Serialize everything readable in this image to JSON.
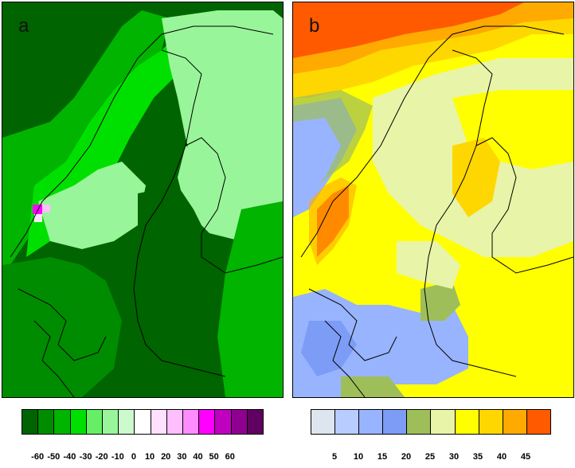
{
  "panels": [
    {
      "id": "a",
      "label": "a",
      "colormap": "green-purple diverging"
    },
    {
      "id": "b",
      "label": "b",
      "colormap": "blue-yellow-red sequential"
    }
  ],
  "legend_a": {
    "colors": [
      "#006400",
      "#008c00",
      "#00b400",
      "#00e000",
      "#66ee66",
      "#99f599",
      "#ccfacc",
      "#ffffff",
      "#ffe0ff",
      "#ffbfff",
      "#ff8cff",
      "#ff00ff",
      "#c000c0",
      "#900090",
      "#600060"
    ],
    "ticks": [
      "-60",
      "-50",
      "-40",
      "-30",
      "-20",
      "-10",
      "0",
      "10",
      "20",
      "30",
      "40",
      "50",
      "60"
    ]
  },
  "legend_b": {
    "colors": [
      "#dde6ee",
      "#b8ccff",
      "#98b4ff",
      "#7d9cf5",
      "#9ebe5a",
      "#e8f4a8",
      "#ffff00",
      "#ffd700",
      "#ffaa00",
      "#ff5a00"
    ],
    "ticks": [
      "5",
      "10",
      "15",
      "20",
      "25",
      "30",
      "35",
      "40",
      "45"
    ]
  }
}
